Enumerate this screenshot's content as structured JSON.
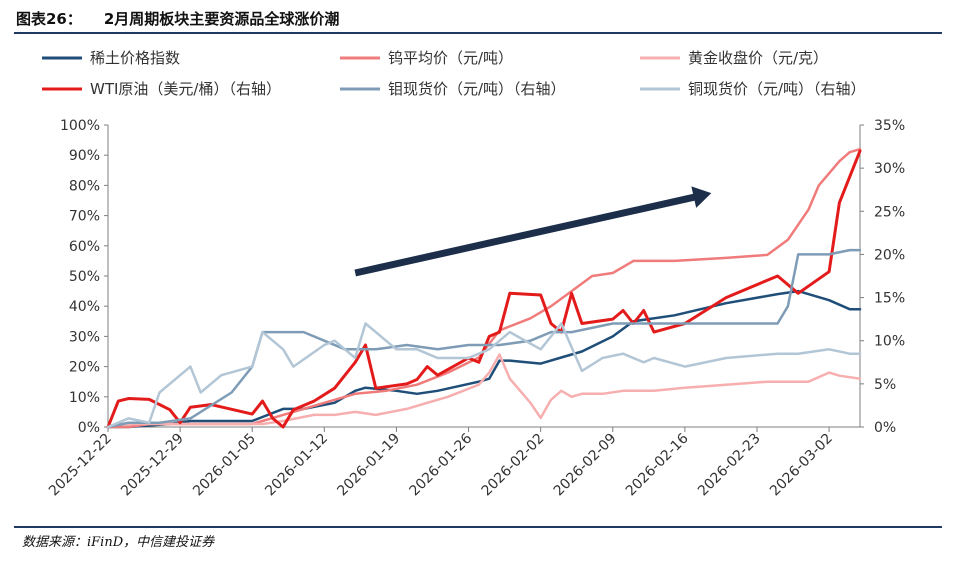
{
  "figure": {
    "number": "图表26：",
    "title": "2月周期板块主要资源品全球涨价潮",
    "source": "数据来源：iFinD，中信建投证券"
  },
  "chart_data": {
    "type": "line",
    "x_type": "date",
    "x_ticks": [
      "2025-12-22",
      "2025-12-29",
      "2026-01-05",
      "2026-01-12",
      "2026-01-19",
      "2026-01-26",
      "2026-02-02",
      "2026-02-09",
      "2026-02-16",
      "2026-02-23",
      "2026-03-02"
    ],
    "x_range": [
      "2025-12-22",
      "2026-03-05"
    ],
    "y_left": {
      "ticks": [
        "0%",
        "10%",
        "20%",
        "30%",
        "40%",
        "50%",
        "60%",
        "70%",
        "80%",
        "90%",
        "100%"
      ],
      "range": [
        0,
        100
      ]
    },
    "y_right": {
      "ticks": [
        "0%",
        "5%",
        "10%",
        "15%",
        "20%",
        "25%",
        "30%",
        "35%"
      ],
      "range": [
        0,
        35
      ]
    },
    "grid": false,
    "legend_position": "top",
    "annotation": "upward trend arrow",
    "series": [
      {
        "name": "稀土价格指数",
        "axis": "left",
        "color": "#1f4e79",
        "points": [
          [
            "2025-12-22",
            0
          ],
          [
            "2025-12-24",
            0
          ],
          [
            "2025-12-28",
            1
          ],
          [
            "2025-12-30",
            2
          ],
          [
            "2026-01-02",
            2
          ],
          [
            "2026-01-05",
            2
          ],
          [
            "2026-01-08",
            6
          ],
          [
            "2026-01-10",
            6
          ],
          [
            "2026-01-13",
            8
          ],
          [
            "2026-01-15",
            12
          ],
          [
            "2026-01-16",
            13
          ],
          [
            "2026-01-19",
            12
          ],
          [
            "2026-01-21",
            11
          ],
          [
            "2026-01-23",
            12
          ],
          [
            "2026-01-27",
            15
          ],
          [
            "2026-01-28",
            16
          ],
          [
            "2026-01-29",
            22
          ],
          [
            "2026-01-30",
            22
          ],
          [
            "2026-02-02",
            21
          ],
          [
            "2026-02-04",
            23
          ],
          [
            "2026-02-06",
            25
          ],
          [
            "2026-02-09",
            30
          ],
          [
            "2026-02-11",
            35
          ],
          [
            "2026-02-15",
            37
          ],
          [
            "2026-02-20",
            41
          ],
          [
            "2026-02-25",
            44
          ],
          [
            "2026-02-27",
            45
          ],
          [
            "2026-03-02",
            42
          ],
          [
            "2026-03-04",
            39
          ],
          [
            "2026-03-05",
            39
          ]
        ]
      },
      {
        "name": "钨平均价（元/吨）",
        "axis": "left",
        "color": "#f07b7b",
        "points": [
          [
            "2025-12-22",
            0
          ],
          [
            "2025-12-24",
            0
          ],
          [
            "2025-12-26",
            1
          ],
          [
            "2025-12-30",
            1
          ],
          [
            "2026-01-05",
            1
          ],
          [
            "2026-01-07",
            3
          ],
          [
            "2026-01-10",
            6
          ],
          [
            "2026-01-12",
            8
          ],
          [
            "2026-01-15",
            11
          ],
          [
            "2026-01-18",
            12
          ],
          [
            "2026-01-21",
            14
          ],
          [
            "2026-01-24",
            18
          ],
          [
            "2026-01-27",
            23
          ],
          [
            "2026-01-29",
            32
          ],
          [
            "2026-02-01",
            36
          ],
          [
            "2026-02-03",
            40
          ],
          [
            "2026-02-05",
            45
          ],
          [
            "2026-02-07",
            50
          ],
          [
            "2026-02-09",
            51
          ],
          [
            "2026-02-11",
            55
          ],
          [
            "2026-02-15",
            55
          ],
          [
            "2026-02-20",
            56
          ],
          [
            "2026-02-24",
            57
          ],
          [
            "2026-02-26",
            62
          ],
          [
            "2026-02-28",
            72
          ],
          [
            "2026-03-01",
            80
          ],
          [
            "2026-03-03",
            88
          ],
          [
            "2026-03-04",
            91
          ],
          [
            "2026-03-05",
            92
          ]
        ]
      },
      {
        "name": "黄金收盘价（元/克）",
        "axis": "left",
        "color": "#f7aeae",
        "points": [
          [
            "2025-12-22",
            0
          ],
          [
            "2025-12-23",
            1
          ],
          [
            "2025-12-25",
            1
          ],
          [
            "2025-12-27",
            1
          ],
          [
            "2025-12-29",
            1
          ],
          [
            "2026-01-01",
            1
          ],
          [
            "2026-01-04",
            1
          ],
          [
            "2026-01-06",
            1
          ],
          [
            "2026-01-08",
            2
          ],
          [
            "2026-01-11",
            4
          ],
          [
            "2026-01-13",
            4
          ],
          [
            "2026-01-15",
            5
          ],
          [
            "2026-01-17",
            4
          ],
          [
            "2026-01-20",
            6
          ],
          [
            "2026-01-22",
            8
          ],
          [
            "2026-01-24",
            10
          ],
          [
            "2026-01-27",
            14
          ],
          [
            "2026-01-28",
            18
          ],
          [
            "2026-01-29",
            24
          ],
          [
            "2026-01-30",
            16
          ],
          [
            "2026-02-01",
            8
          ],
          [
            "2026-02-02",
            3
          ],
          [
            "2026-02-03",
            9
          ],
          [
            "2026-02-04",
            12
          ],
          [
            "2026-02-05",
            10
          ],
          [
            "2026-02-06",
            11
          ],
          [
            "2026-02-08",
            11
          ],
          [
            "2026-02-10",
            12
          ],
          [
            "2026-02-13",
            12
          ],
          [
            "2026-02-16",
            13
          ],
          [
            "2026-02-20",
            14
          ],
          [
            "2026-02-24",
            15
          ],
          [
            "2026-02-28",
            15
          ],
          [
            "2026-03-02",
            18
          ],
          [
            "2026-03-03",
            17
          ],
          [
            "2026-03-05",
            16
          ]
        ]
      },
      {
        "name": "WTI原油（美元/桶）（右轴）",
        "axis": "right",
        "color": "#e31b1b",
        "points": [
          [
            "2025-12-22",
            0
          ],
          [
            "2025-12-23",
            3
          ],
          [
            "2025-12-24",
            3.3
          ],
          [
            "2025-12-26",
            3.2
          ],
          [
            "2025-12-28",
            2
          ],
          [
            "2025-12-29",
            0.5
          ],
          [
            "2025-12-30",
            2.3
          ],
          [
            "2026-01-01",
            2.6
          ],
          [
            "2026-01-05",
            1.5
          ],
          [
            "2026-01-06",
            3
          ],
          [
            "2026-01-07",
            1
          ],
          [
            "2026-01-08",
            0
          ],
          [
            "2026-01-09",
            2
          ],
          [
            "2026-01-11",
            3
          ],
          [
            "2026-01-13",
            4.5
          ],
          [
            "2026-01-15",
            7.5
          ],
          [
            "2026-01-16",
            9.5
          ],
          [
            "2026-01-17",
            4.5
          ],
          [
            "2026-01-20",
            5
          ],
          [
            "2026-01-21",
            5.5
          ],
          [
            "2026-01-22",
            7
          ],
          [
            "2026-01-23",
            6
          ],
          [
            "2026-01-26",
            8
          ],
          [
            "2026-01-27",
            7.5
          ],
          [
            "2026-01-28",
            10.5
          ],
          [
            "2026-01-29",
            11
          ],
          [
            "2026-01-30",
            15.5
          ],
          [
            "2026-02-02",
            15.3
          ],
          [
            "2026-02-03",
            12
          ],
          [
            "2026-02-04",
            11
          ],
          [
            "2026-02-05",
            15.5
          ],
          [
            "2026-02-06",
            12
          ],
          [
            "2026-02-09",
            12.5
          ],
          [
            "2026-02-10",
            13.5
          ],
          [
            "2026-02-11",
            12
          ],
          [
            "2026-02-12",
            13.5
          ],
          [
            "2026-02-13",
            11
          ],
          [
            "2026-02-16",
            12
          ],
          [
            "2026-02-20",
            15
          ],
          [
            "2026-02-25",
            17.5
          ],
          [
            "2026-02-27",
            15.5
          ],
          [
            "2026-03-02",
            18
          ],
          [
            "2026-03-03",
            26
          ],
          [
            "2026-03-05",
            32
          ]
        ]
      },
      {
        "name": "钼现货价（元/吨）（右轴）",
        "axis": "right",
        "color": "#7f9cb6",
        "points": [
          [
            "2025-12-22",
            0
          ],
          [
            "2025-12-24",
            0.5
          ],
          [
            "2025-12-27",
            0.5
          ],
          [
            "2025-12-30",
            1
          ],
          [
            "2026-01-03",
            4
          ],
          [
            "2026-01-05",
            7
          ],
          [
            "2026-01-06",
            11
          ],
          [
            "2026-01-08",
            11
          ],
          [
            "2026-01-10",
            11
          ],
          [
            "2026-01-12",
            10
          ],
          [
            "2026-01-14",
            9
          ],
          [
            "2026-01-17",
            9
          ],
          [
            "2026-01-20",
            9.5
          ],
          [
            "2026-01-23",
            9
          ],
          [
            "2026-01-26",
            9.5
          ],
          [
            "2026-01-29",
            9.5
          ],
          [
            "2026-02-01",
            10
          ],
          [
            "2026-02-03",
            11
          ],
          [
            "2026-02-05",
            11
          ],
          [
            "2026-02-09",
            12
          ],
          [
            "2026-02-13",
            12
          ],
          [
            "2026-02-20",
            12
          ],
          [
            "2026-02-25",
            12
          ],
          [
            "2026-02-26",
            14
          ],
          [
            "2026-02-27",
            20
          ],
          [
            "2026-03-02",
            20
          ],
          [
            "2026-03-04",
            20.5
          ],
          [
            "2026-03-05",
            20.5
          ]
        ]
      },
      {
        "name": "铜现货价（元/吨）（右轴）",
        "axis": "right",
        "color": "#b3c6d6",
        "points": [
          [
            "2025-12-22",
            0
          ],
          [
            "2025-12-24",
            1
          ],
          [
            "2025-12-26",
            0.5
          ],
          [
            "2025-12-27",
            4
          ],
          [
            "2025-12-30",
            7
          ],
          [
            "2025-12-31",
            4
          ],
          [
            "2026-01-02",
            6
          ],
          [
            "2026-01-05",
            7
          ],
          [
            "2026-01-06",
            11
          ],
          [
            "2026-01-08",
            9
          ],
          [
            "2026-01-09",
            7
          ],
          [
            "2026-01-12",
            9.5
          ],
          [
            "2026-01-13",
            10
          ],
          [
            "2026-01-15",
            8
          ],
          [
            "2026-01-16",
            12
          ],
          [
            "2026-01-19",
            9
          ],
          [
            "2026-01-21",
            9
          ],
          [
            "2026-01-23",
            8
          ],
          [
            "2026-01-26",
            8
          ],
          [
            "2026-01-28",
            9
          ],
          [
            "2026-01-30",
            11
          ],
          [
            "2026-02-02",
            9
          ],
          [
            "2026-02-04",
            12
          ],
          [
            "2026-02-06",
            6.5
          ],
          [
            "2026-02-08",
            8
          ],
          [
            "2026-02-10",
            8.5
          ],
          [
            "2026-02-12",
            7.5
          ],
          [
            "2026-02-13",
            8
          ],
          [
            "2026-02-16",
            7
          ],
          [
            "2026-02-20",
            8
          ],
          [
            "2026-02-25",
            8.5
          ],
          [
            "2026-02-27",
            8.5
          ],
          [
            "2026-03-02",
            9
          ],
          [
            "2026-03-04",
            8.5
          ],
          [
            "2026-03-05",
            8.5
          ]
        ]
      }
    ]
  }
}
